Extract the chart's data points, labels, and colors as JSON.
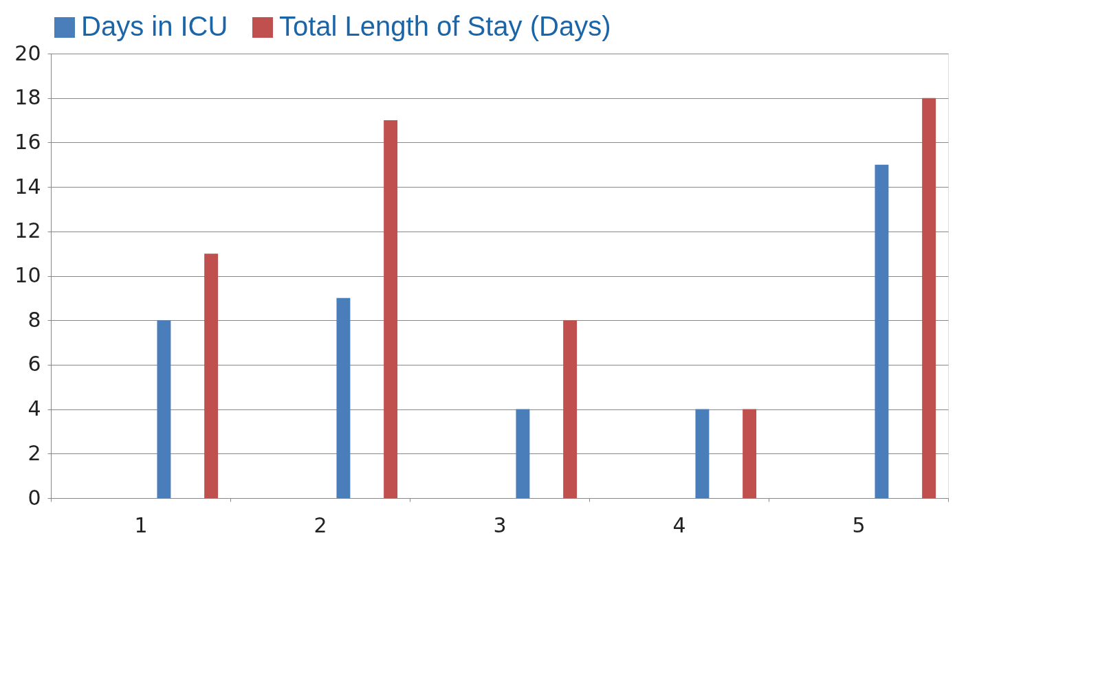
{
  "chart_data": {
    "type": "bar",
    "categories": [
      "1",
      "2",
      "3",
      "4",
      "5"
    ],
    "series": [
      {
        "name": "Days in ICU",
        "color": "#4a7ebb",
        "values": [
          8,
          9,
          4,
          4,
          15
        ]
      },
      {
        "name": "Total Length of Stay (Days)",
        "color": "#c0504d",
        "values": [
          11,
          17,
          8,
          4,
          18
        ]
      }
    ],
    "ylim": [
      0,
      20
    ],
    "yticks": [
      0,
      2,
      4,
      6,
      8,
      10,
      12,
      14,
      16,
      18,
      20
    ],
    "grid": "y",
    "legend": "top"
  }
}
